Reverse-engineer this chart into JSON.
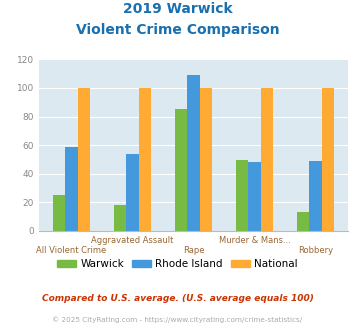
{
  "title_line1": "2019 Warwick",
  "title_line2": "Violent Crime Comparison",
  "title_color": "#1a6faf",
  "categories": [
    "All Violent Crime",
    "Aggravated Assault",
    "Rape",
    "Murder & Mans...",
    "Robbery"
  ],
  "top_labels": [
    "",
    "Aggravated Assault",
    "",
    "Murder & Mans...",
    ""
  ],
  "bottom_labels": [
    "All Violent Crime",
    "",
    "Rape",
    "",
    "Robbery"
  ],
  "warwick": [
    25,
    18,
    85,
    50,
    13
  ],
  "rhode_island": [
    59,
    54,
    109,
    48,
    49
  ],
  "national": [
    100,
    100,
    100,
    100,
    100
  ],
  "warwick_color": "#77bb44",
  "rhode_island_color": "#4499dd",
  "national_color": "#ffaa33",
  "ylim": [
    0,
    120
  ],
  "yticks": [
    0,
    20,
    40,
    60,
    80,
    100,
    120
  ],
  "plot_bg": "#dce9f0",
  "legend_labels": [
    "Warwick",
    "Rhode Island",
    "National"
  ],
  "footnote1": "Compared to U.S. average. (U.S. average equals 100)",
  "footnote2": "© 2025 CityRating.com - https://www.cityrating.com/crime-statistics/",
  "footnote1_color": "#cc3300",
  "footnote2_color": "#aaaaaa",
  "label_color": "#996633",
  "ytick_color": "#888888",
  "bar_width": 0.2
}
